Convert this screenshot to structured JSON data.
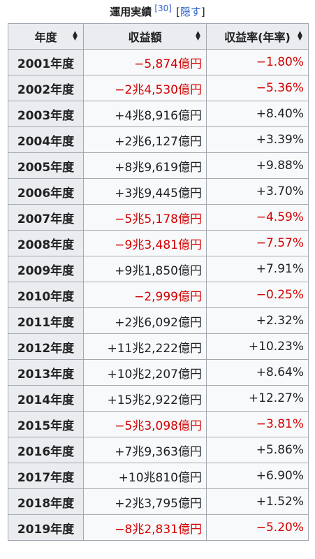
{
  "caption": {
    "title": "運用実績",
    "ref": "[30]",
    "toggle_open": "[",
    "toggle_label": "隠す",
    "toggle_close": "]"
  },
  "headers": {
    "year": "年度",
    "amount": "収益額",
    "rate": "収益率(年率)",
    "sort_icon": "sort-icon"
  },
  "colors": {
    "negative": "#d20000",
    "positive": "#202122",
    "link": "#3366cc",
    "header_bg": "#eaecf0",
    "cell_bg": "#f8f9fa",
    "border": "#a2a9b1"
  },
  "rows": [
    {
      "year": "2001年度",
      "amount": "−5,874億円",
      "rate": "−1.80%",
      "negative": true
    },
    {
      "year": "2002年度",
      "amount": "−2兆4,530億円",
      "rate": "−5.36%",
      "negative": true
    },
    {
      "year": "2003年度",
      "amount": "+4兆8,916億円",
      "rate": "+8.40%",
      "negative": false
    },
    {
      "year": "2004年度",
      "amount": "+2兆6,127億円",
      "rate": "+3.39%",
      "negative": false
    },
    {
      "year": "2005年度",
      "amount": "+8兆9,619億円",
      "rate": "+9.88%",
      "negative": false
    },
    {
      "year": "2006年度",
      "amount": "+3兆9,445億円",
      "rate": "+3.70%",
      "negative": false
    },
    {
      "year": "2007年度",
      "amount": "−5兆5,178億円",
      "rate": "−4.59%",
      "negative": true
    },
    {
      "year": "2008年度",
      "amount": "−9兆3,481億円",
      "rate": "−7.57%",
      "negative": true
    },
    {
      "year": "2009年度",
      "amount": "+9兆1,850億円",
      "rate": "+7.91%",
      "negative": false
    },
    {
      "year": "2010年度",
      "amount": "−2,999億円",
      "rate": "−0.25%",
      "negative": true
    },
    {
      "year": "2011年度",
      "amount": "+2兆6,092億円",
      "rate": "+2.32%",
      "negative": false
    },
    {
      "year": "2012年度",
      "amount": "+11兆2,222億円",
      "rate": "+10.23%",
      "negative": false
    },
    {
      "year": "2013年度",
      "amount": "+10兆2,207億円",
      "rate": "+8.64%",
      "negative": false
    },
    {
      "year": "2014年度",
      "amount": "+15兆2,922億円",
      "rate": "+12.27%",
      "negative": false
    },
    {
      "year": "2015年度",
      "amount": "−5兆3,098億円",
      "rate": "−3.81%",
      "negative": true
    },
    {
      "year": "2016年度",
      "amount": "+7兆9,363億円",
      "rate": "+5.86%",
      "negative": false
    },
    {
      "year": "2017年度",
      "amount": "+10兆810億円",
      "rate": "+6.90%",
      "negative": false
    },
    {
      "year": "2018年度",
      "amount": "+2兆3,795億円",
      "rate": "+1.52%",
      "negative": false
    },
    {
      "year": "2019年度",
      "amount": "−8兆2,831億円",
      "rate": "−5.20%",
      "negative": true
    }
  ]
}
